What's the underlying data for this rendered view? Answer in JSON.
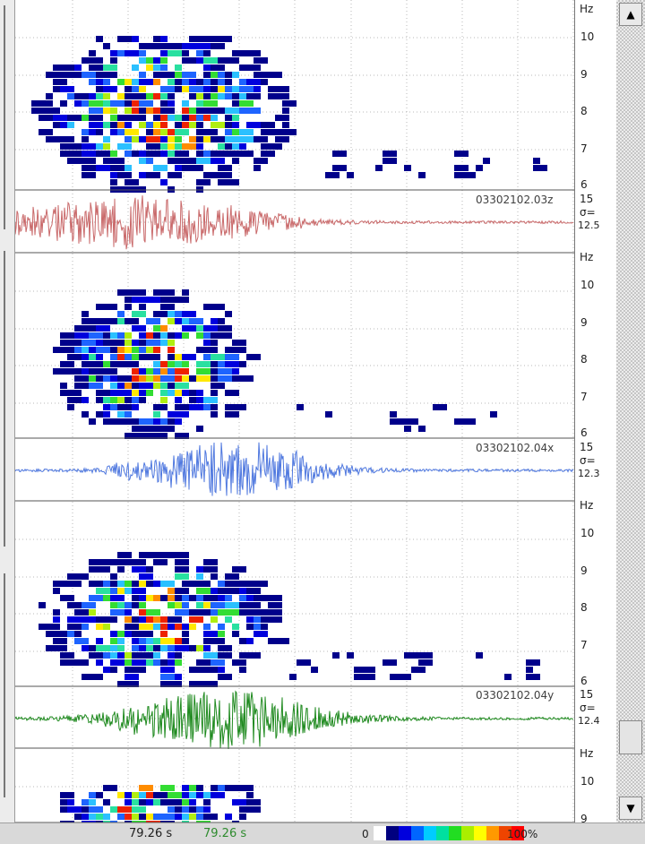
{
  "axis": {
    "hz_label": "Hz",
    "freq_ticks": [
      "10",
      "9",
      "8",
      "7",
      "6"
    ],
    "amp_value": "15",
    "sigma_label": "σ="
  },
  "panels": [
    {
      "trace": "03302102.03z",
      "sigma": "12.5",
      "color": "#c9696a"
    },
    {
      "trace": "03302102.04x",
      "sigma": "12.3",
      "color": "#4f78df"
    },
    {
      "trace": "03302102.04y",
      "sigma": "12.4",
      "color": "#1f8a1f"
    }
  ],
  "partial_panel": {
    "freq_ticks": [
      "10",
      "9"
    ]
  },
  "status": {
    "time_a": "79.26 s",
    "time_b": "79.26 s",
    "scale_min": "0",
    "scale_max": "100%",
    "scale_colors": [
      "#ffffff",
      "#00007f",
      "#0000dd",
      "#0066ff",
      "#00ccff",
      "#00e0a0",
      "#22dd22",
      "#aaee00",
      "#ffff00",
      "#ff9900",
      "#ee4400",
      "#ff0000"
    ]
  },
  "spectrogram_colors": [
    "#00008b",
    "#0000dd",
    "#1e64ff",
    "#2bc0ff",
    "#29e0a0",
    "#33dd33",
    "#b0ee11",
    "#ffe800",
    "#ff8c00",
    "#ee2200"
  ]
}
